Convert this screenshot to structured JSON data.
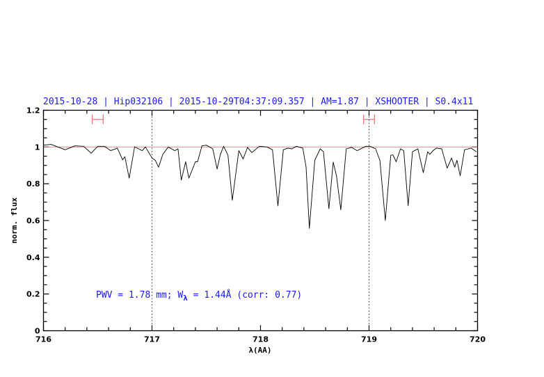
{
  "chart_data": {
    "type": "line",
    "title": "2015-10-28 | Hip032106 | 2015-10-29T04:37:09.357 | AM=1.87 | XSHOOTER | S0.4x11",
    "xlabel": "λ(AA)",
    "ylabel": "norm. flux",
    "xlim": [
      716,
      720
    ],
    "ylim": [
      0,
      1.2
    ],
    "x_ticks": [
      "716",
      "717",
      "718",
      "719",
      "720"
    ],
    "y_ticks": [
      "0",
      "0.2",
      "0.4",
      "0.6",
      "0.8",
      "1",
      "1.2"
    ],
    "grid": false,
    "reference_line": {
      "y": 1.0,
      "color": "#d88080"
    },
    "vertical_dotted_lines": [
      717,
      719
    ],
    "ranges": [
      {
        "from": 716.45,
        "to": 716.55,
        "y": 1.15,
        "color": "#f07070"
      },
      {
        "from": 718.95,
        "to": 719.05,
        "y": 1.15,
        "color": "#f07070"
      }
    ],
    "annotation": {
      "prefix": "PWV = 1.78 mm; W",
      "subscript": "λ",
      "suffix": " = 1.44Å (corr: 0.77)"
    },
    "text_color": "#1a1aff",
    "series": [
      {
        "color": "#000000",
        "x": [
          716.0,
          716.07,
          716.2,
          716.29,
          716.37,
          716.44,
          716.5,
          716.56,
          716.62,
          716.68,
          716.73,
          716.75,
          716.79,
          716.84,
          716.91,
          716.94,
          717.0,
          717.03,
          717.06,
          717.1,
          717.15,
          717.21,
          717.24,
          717.27,
          717.31,
          717.34,
          717.4,
          717.42,
          717.46,
          717.5,
          717.56,
          717.6,
          717.63,
          717.66,
          717.7,
          717.74,
          717.8,
          717.84,
          717.88,
          717.92,
          717.99,
          718.06,
          718.11,
          718.16,
          718.21,
          718.25,
          718.29,
          718.33,
          718.39,
          718.42,
          718.45,
          718.5,
          718.55,
          718.58,
          718.63,
          718.67,
          718.7,
          718.74,
          718.79,
          718.84,
          718.89,
          718.97,
          719.01,
          719.06,
          719.1,
          719.15,
          719.2,
          719.22,
          719.25,
          719.29,
          719.32,
          719.36,
          719.4,
          719.45,
          719.5,
          719.54,
          719.56,
          719.59,
          719.62,
          719.67,
          719.72,
          719.76,
          719.79,
          719.81,
          719.84,
          719.88,
          719.94,
          719.99
        ],
        "y": [
          1.01,
          1.014,
          0.985,
          1.006,
          1.004,
          0.966,
          1.004,
          1.004,
          0.98,
          0.994,
          0.93,
          0.947,
          0.83,
          1.001,
          0.98,
          1.0,
          0.94,
          0.928,
          0.89,
          0.96,
          1.0,
          0.98,
          0.99,
          0.82,
          0.92,
          0.83,
          0.92,
          0.92,
          1.006,
          1.01,
          0.99,
          0.88,
          0.96,
          1.004,
          0.955,
          0.71,
          0.98,
          0.935,
          0.998,
          0.97,
          1.004,
          1.0,
          0.985,
          0.68,
          0.985,
          0.994,
          0.99,
          1.004,
          0.994,
          0.89,
          0.557,
          0.928,
          0.99,
          0.974,
          0.664,
          0.918,
          0.843,
          0.658,
          0.99,
          0.998,
          0.98,
          1.004,
          1.004,
          0.99,
          0.928,
          0.6,
          0.955,
          0.957,
          0.92,
          0.99,
          0.98,
          0.68,
          0.974,
          0.99,
          0.86,
          0.974,
          0.96,
          0.98,
          0.994,
          0.99,
          0.885,
          0.94,
          0.89,
          0.928,
          0.843,
          0.985,
          0.994,
          0.974
        ]
      }
    ]
  }
}
